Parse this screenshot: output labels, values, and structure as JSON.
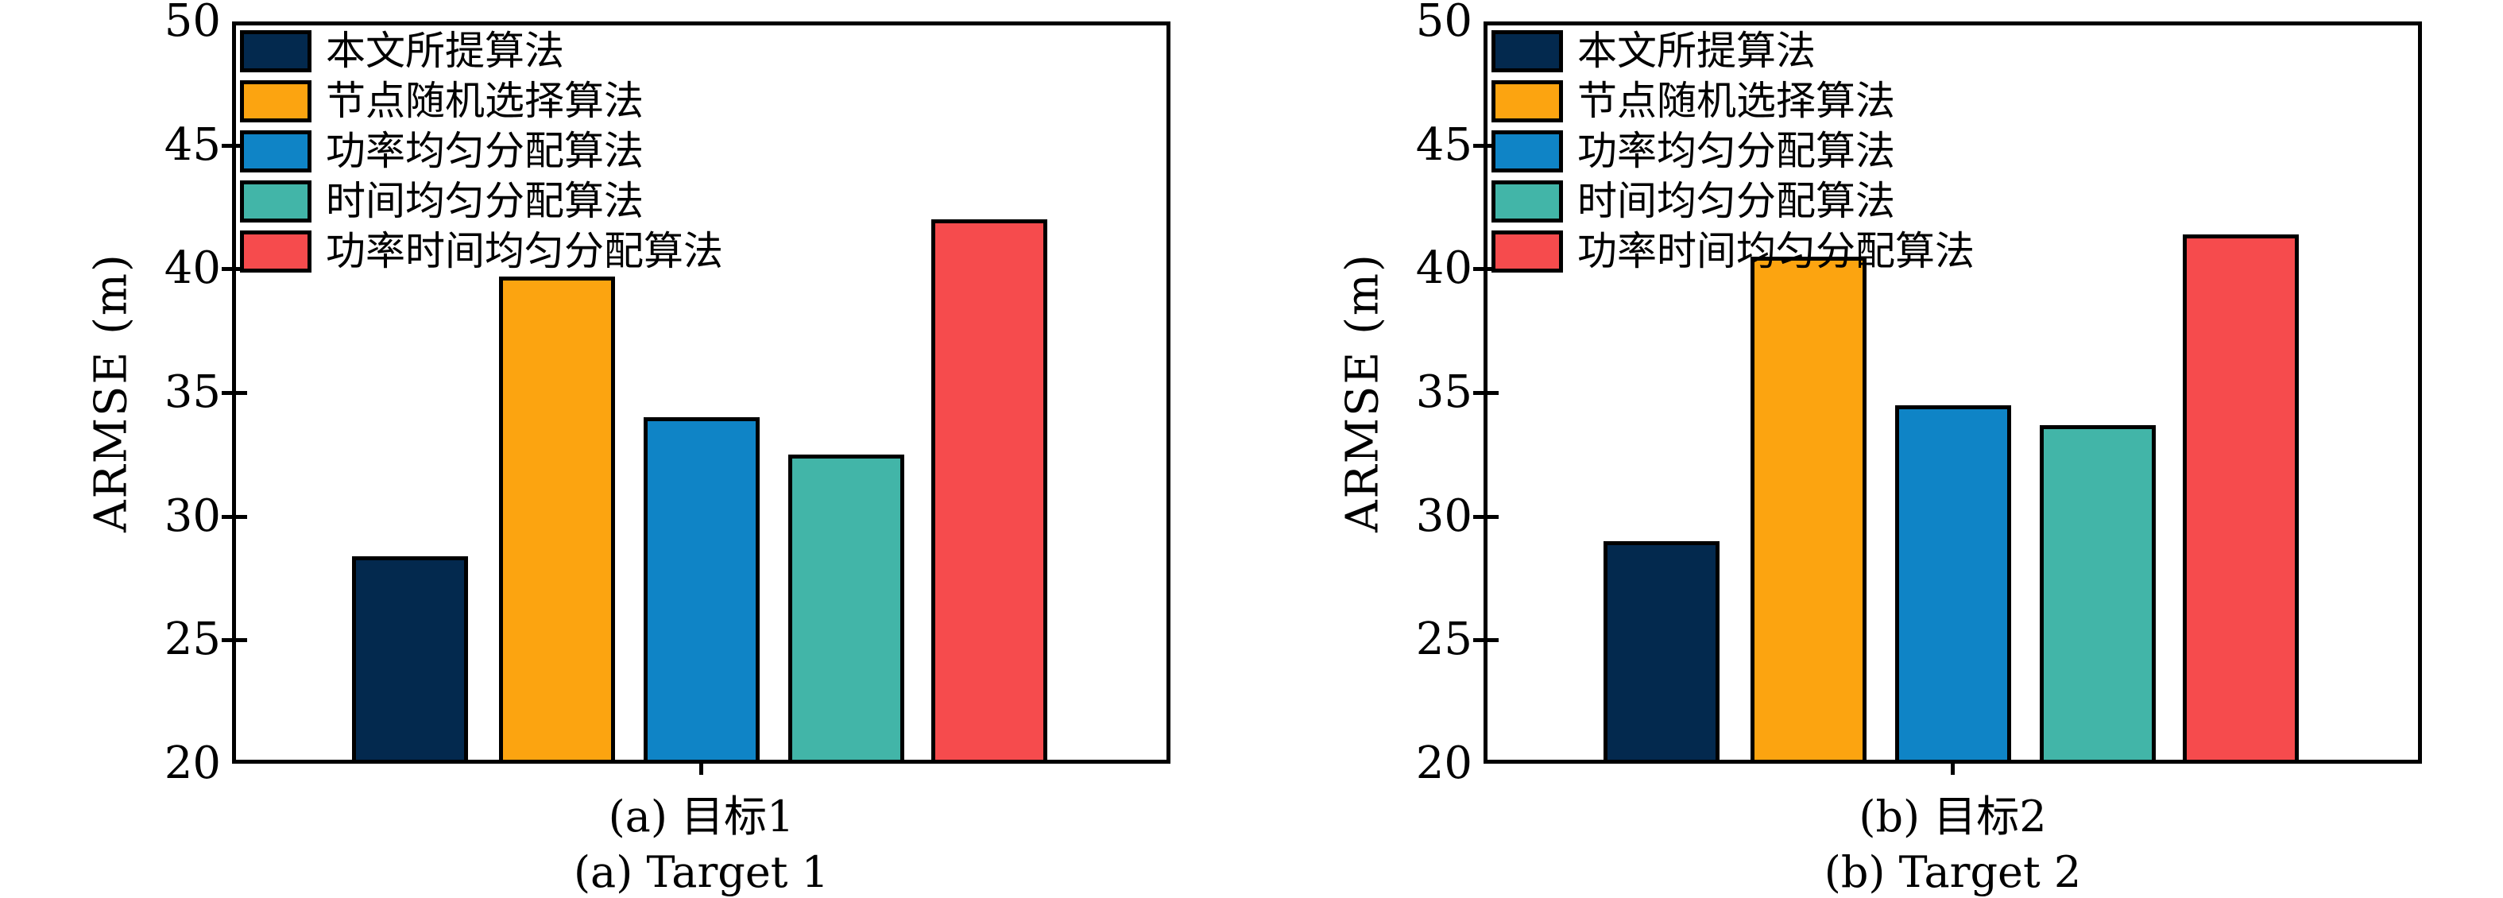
{
  "figure": {
    "ylabel": "ARMSE (m)",
    "ylim": [
      20,
      50
    ],
    "yticks": [
      "20",
      "25",
      "30",
      "35",
      "40",
      "45",
      "50"
    ],
    "legend": [
      {
        "label": "本文所提算法",
        "color": "#03294e"
      },
      {
        "label": "节点随机选择算法",
        "color": "#fca410"
      },
      {
        "label": "功率均匀分配算法",
        "color": "#0f84c6"
      },
      {
        "label": "时间均匀分配算法",
        "color": "#42b5a8"
      },
      {
        "label": "功率时间均匀分配算法",
        "color": "#f64b4d"
      }
    ],
    "panels": [
      {
        "caption_zh": "(a) 目标1",
        "caption_en": "(a) Target 1",
        "values": [
          28.4,
          39.7,
          34.0,
          32.5,
          42.0
        ]
      },
      {
        "caption_zh": "(b) 目标2",
        "caption_en": "(b) Target 2",
        "values": [
          29.0,
          40.5,
          34.5,
          33.7,
          41.4
        ]
      }
    ]
  },
  "chart_data": [
    {
      "type": "bar",
      "title": "(a) 目标1 — (a) Target 1",
      "categories": [
        "本文所提算法",
        "节点随机选择算法",
        "功率均匀分配算法",
        "时间均匀分配算法",
        "功率时间均匀分配算法"
      ],
      "values": [
        28.4,
        39.7,
        34.0,
        32.5,
        42.0
      ],
      "colors": [
        "#03294e",
        "#fca410",
        "#0f84c6",
        "#42b5a8",
        "#f64b4d"
      ],
      "xlabel": "",
      "ylabel": "ARMSE (m)",
      "ylim": [
        20,
        50
      ],
      "yticks": [
        20,
        25,
        30,
        35,
        40,
        45,
        50
      ],
      "grid": false,
      "legend_position": "upper left"
    },
    {
      "type": "bar",
      "title": "(b) 目标2 — (b) Target 2",
      "categories": [
        "本文所提算法",
        "节点随机选择算法",
        "功率均匀分配算法",
        "时间均匀分配算法",
        "功率时间均匀分配算法"
      ],
      "values": [
        29.0,
        40.5,
        34.5,
        33.7,
        41.4
      ],
      "colors": [
        "#03294e",
        "#fca410",
        "#0f84c6",
        "#42b5a8",
        "#f64b4d"
      ],
      "xlabel": "",
      "ylabel": "ARMSE (m)",
      "ylim": [
        20,
        50
      ],
      "yticks": [
        20,
        25,
        30,
        35,
        40,
        45,
        50
      ],
      "grid": false,
      "legend_position": "upper left"
    }
  ]
}
